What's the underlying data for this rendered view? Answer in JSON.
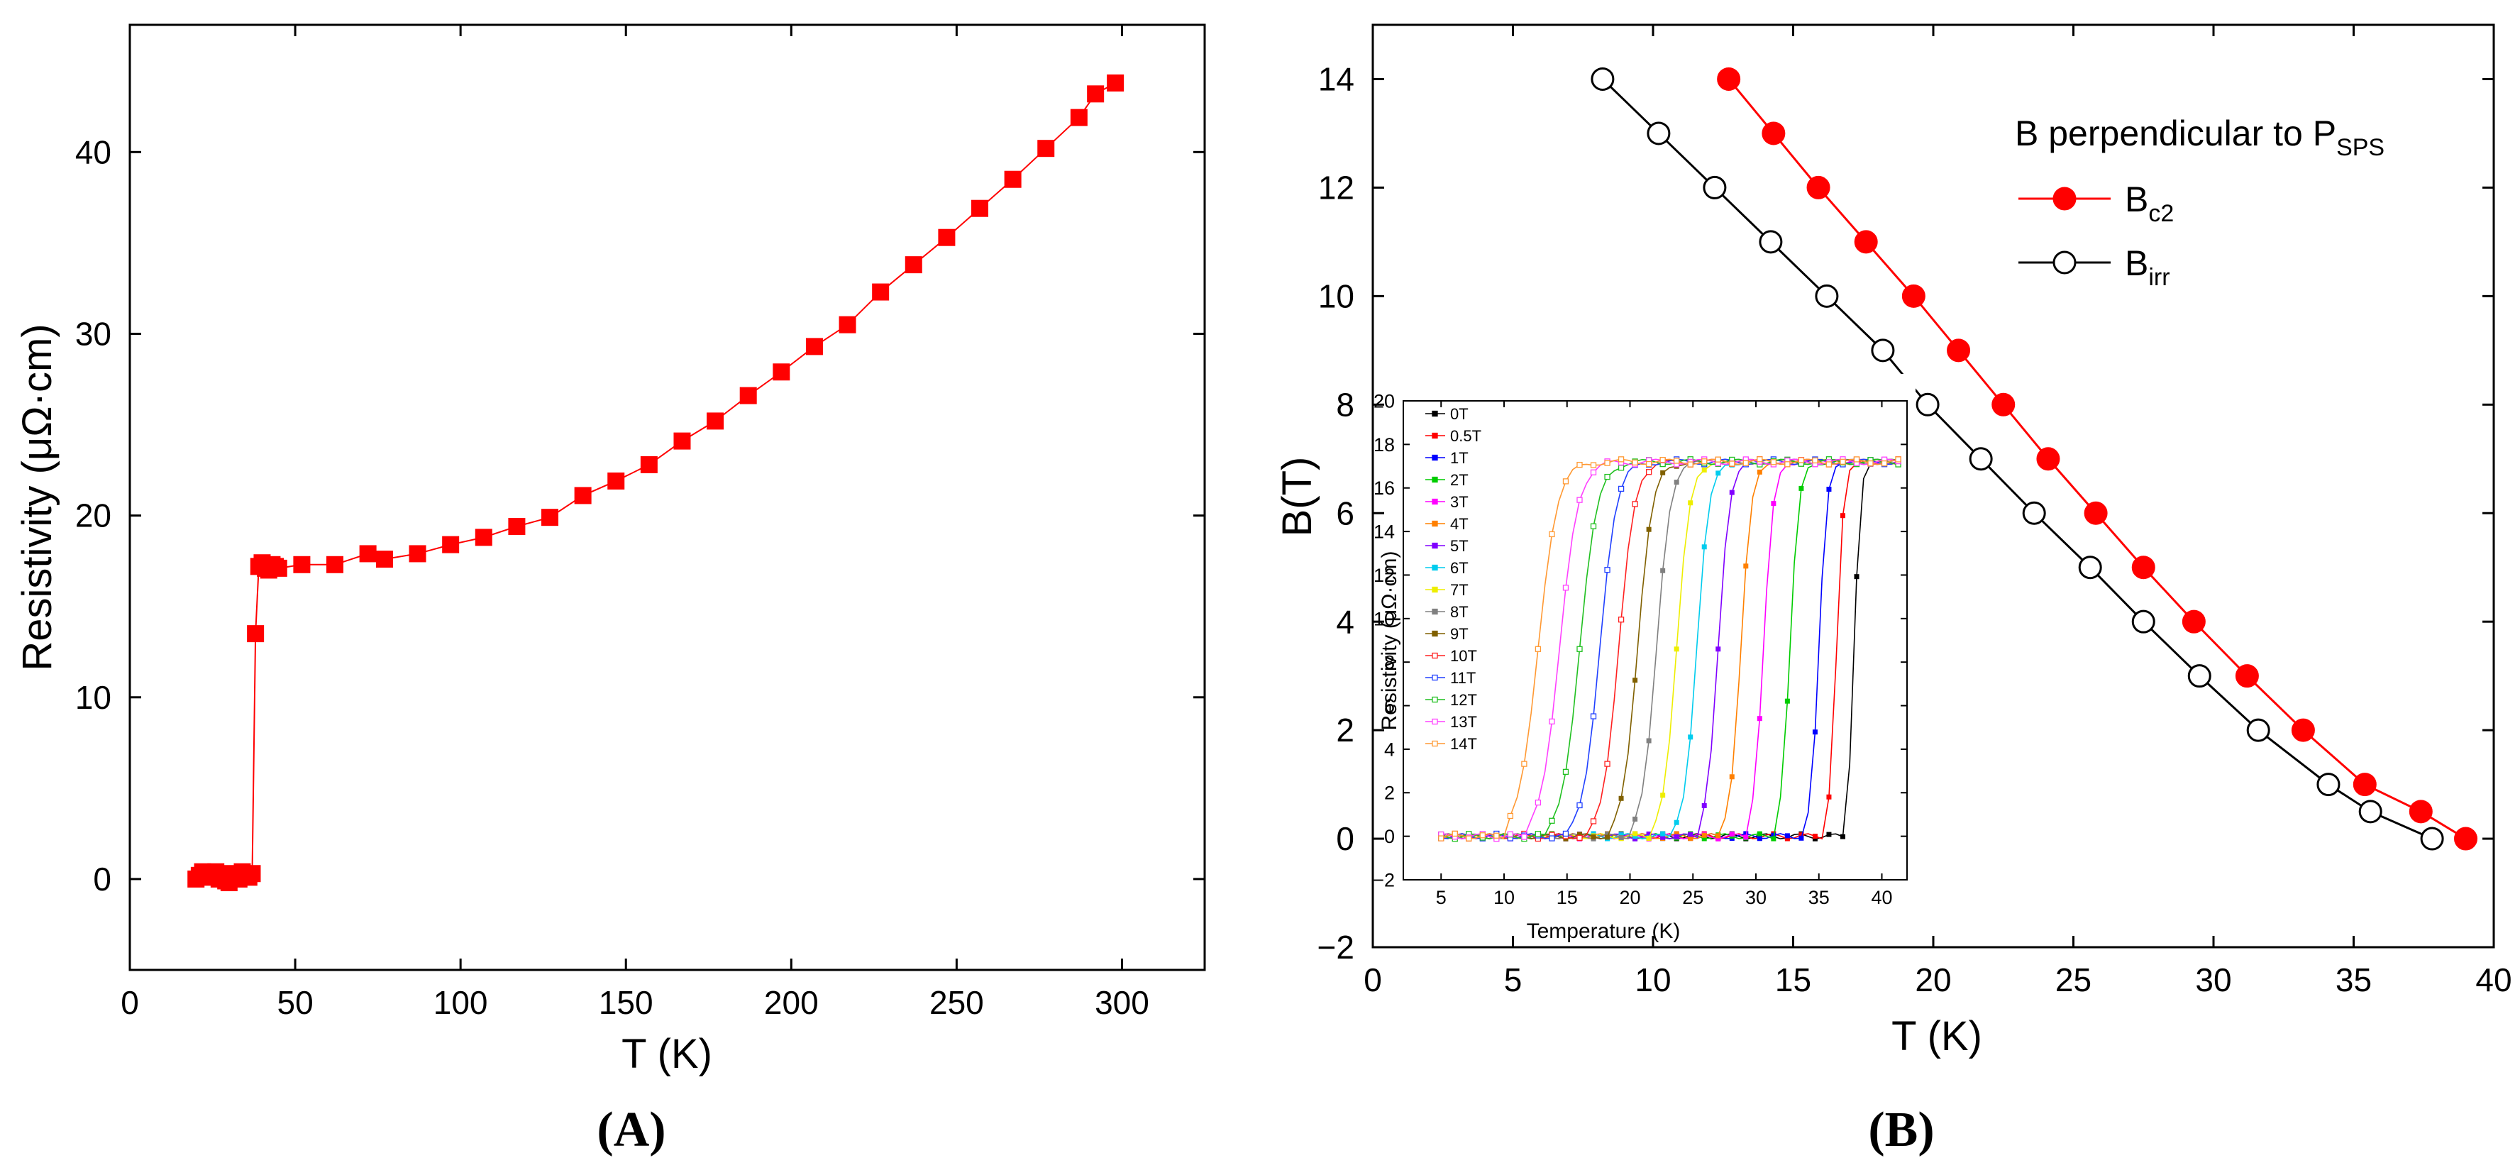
{
  "chart_data": [
    {
      "type": "line",
      "panel": "A",
      "panel_label": "(A)",
      "xlabel": "T (K)",
      "ylabel": "Resistivity (μΩ·cm)",
      "xlim": [
        0,
        325
      ],
      "ylim": [
        -5,
        47
      ],
      "xticks": [
        "0",
        "50",
        "100",
        "150",
        "200",
        "250",
        "300"
      ],
      "yticks": [
        "0",
        "10",
        "20",
        "30",
        "40"
      ],
      "marker": "square",
      "color": "#ff0000",
      "series": [
        {
          "name": "Resistivity",
          "x": [
            20,
            21,
            22,
            23,
            24,
            25,
            26,
            27,
            28,
            29,
            30,
            31,
            32,
            33,
            34,
            35,
            36,
            37,
            38,
            39,
            40,
            41,
            42,
            43,
            44,
            45,
            52,
            62,
            72,
            77,
            87,
            97,
            107,
            117,
            127,
            137,
            147,
            157,
            167,
            177,
            187,
            197,
            207,
            217,
            227,
            237,
            247,
            257,
            267,
            277,
            287,
            292,
            298
          ],
          "y": [
            0.0,
            0.2,
            0.4,
            0.1,
            0.3,
            0.2,
            0.4,
            0.0,
            0.2,
            -0.1,
            -0.2,
            0.3,
            0.1,
            0.0,
            0.4,
            0.2,
            0.1,
            0.3,
            13.5,
            17.2,
            17.4,
            17.1,
            17.0,
            17.3,
            17.2,
            17.1,
            17.3,
            17.3,
            17.9,
            17.6,
            17.9,
            18.4,
            18.8,
            19.4,
            19.9,
            21.1,
            21.9,
            22.8,
            24.1,
            25.2,
            26.6,
            27.9,
            29.3,
            30.5,
            32.3,
            33.8,
            35.3,
            36.9,
            38.5,
            40.2,
            41.9,
            43.2,
            43.8
          ]
        }
      ]
    },
    {
      "type": "line",
      "panel": "B",
      "panel_label": "(B)",
      "xlabel": "T (K)",
      "ylabel": "B(T)",
      "xlim": [
        0,
        40
      ],
      "ylim": [
        -2,
        15
      ],
      "xticks": [
        "0",
        "5",
        "10",
        "15",
        "20",
        "25",
        "30",
        "35",
        "40"
      ],
      "yticks": [
        "−2",
        "0",
        "2",
        "4",
        "6",
        "8",
        "10",
        "12",
        "14"
      ],
      "legend": {
        "title_main": "B perpendicular to P",
        "title_sub": "SPS",
        "position": "top-right",
        "entries": [
          {
            "main": "B",
            "sub": "c2"
          },
          {
            "main": "B",
            "sub": "irr"
          }
        ]
      },
      "series": [
        {
          "name": "Bc2",
          "color": "#ff0000",
          "marker": "filled-circle",
          "x": [
            12.7,
            14.3,
            15.9,
            17.6,
            19.3,
            20.9,
            22.5,
            24.1,
            25.8,
            27.5,
            29.3,
            31.2,
            33.2,
            35.4,
            37.4,
            39.0
          ],
          "y": [
            14,
            13,
            12,
            11,
            10,
            9,
            8,
            7,
            6,
            5,
            4,
            3,
            2,
            1,
            0.5,
            0
          ]
        },
        {
          "name": "Birr",
          "color": "#000000",
          "marker": "open-circle",
          "x": [
            8.2,
            10.2,
            12.2,
            14.2,
            16.2,
            18.2,
            19.8,
            21.7,
            23.6,
            25.6,
            27.5,
            29.5,
            31.6,
            34.1,
            35.6,
            37.8
          ],
          "y": [
            14,
            13,
            12,
            11,
            10,
            9,
            8,
            7,
            6,
            5,
            4,
            3,
            2,
            1,
            0.5,
            0
          ]
        }
      ]
    },
    {
      "type": "line",
      "panel": "B-inset",
      "xlabel": "Temperature (K)",
      "ylabel": "Resistivity (μΩ·cm)",
      "xlim": [
        2,
        42
      ],
      "ylim": [
        -2,
        20
      ],
      "xticks": [
        "5",
        "10",
        "15",
        "20",
        "25",
        "30",
        "35",
        "40"
      ],
      "yticks": [
        "−2",
        "0",
        "2",
        "4",
        "6",
        "8",
        "10",
        "12",
        "14",
        "16",
        "18",
        "20"
      ],
      "legend_position": "left",
      "normal_state_value": 17.2,
      "series": [
        {
          "name": "0T",
          "color": "#000000",
          "tc_mid": 37.8,
          "width": 0.7,
          "marker": "filled"
        },
        {
          "name": "0.5T",
          "color": "#ff0000",
          "tc_mid": 36.4,
          "width": 0.8,
          "marker": "filled"
        },
        {
          "name": "1T",
          "color": "#0000ff",
          "tc_mid": 35.0,
          "width": 0.9,
          "marker": "filled"
        },
        {
          "name": "2T",
          "color": "#00cc00",
          "tc_mid": 32.7,
          "width": 1.0,
          "marker": "filled"
        },
        {
          "name": "3T",
          "color": "#ff00ff",
          "tc_mid": 30.6,
          "width": 1.1,
          "marker": "filled"
        },
        {
          "name": "4T",
          "color": "#ff8000",
          "tc_mid": 28.8,
          "width": 1.2,
          "marker": "filled"
        },
        {
          "name": "5T",
          "color": "#8000ff",
          "tc_mid": 27.0,
          "width": 1.3,
          "marker": "filled"
        },
        {
          "name": "6T",
          "color": "#00ccee",
          "tc_mid": 25.3,
          "width": 1.4,
          "marker": "filled"
        },
        {
          "name": "7T",
          "color": "#eeee00",
          "tc_mid": 23.7,
          "width": 1.5,
          "marker": "filled"
        },
        {
          "name": "8T",
          "color": "#808080",
          "tc_mid": 22.1,
          "width": 1.6,
          "marker": "filled"
        },
        {
          "name": "9T",
          "color": "#806000",
          "tc_mid": 20.6,
          "width": 1.7,
          "marker": "filled"
        },
        {
          "name": "10T",
          "color": "#ff2020",
          "tc_mid": 19.1,
          "width": 1.8,
          "marker": "open"
        },
        {
          "name": "11T",
          "color": "#2040ff",
          "tc_mid": 17.6,
          "width": 1.9,
          "marker": "open"
        },
        {
          "name": "12T",
          "color": "#20c020",
          "tc_mid": 16.0,
          "width": 2.0,
          "marker": "open"
        },
        {
          "name": "13T",
          "color": "#ff40ff",
          "tc_mid": 14.4,
          "width": 2.1,
          "marker": "open"
        },
        {
          "name": "14T",
          "color": "#ff9933",
          "tc_mid": 12.7,
          "width": 2.2,
          "marker": "open"
        }
      ]
    }
  ]
}
